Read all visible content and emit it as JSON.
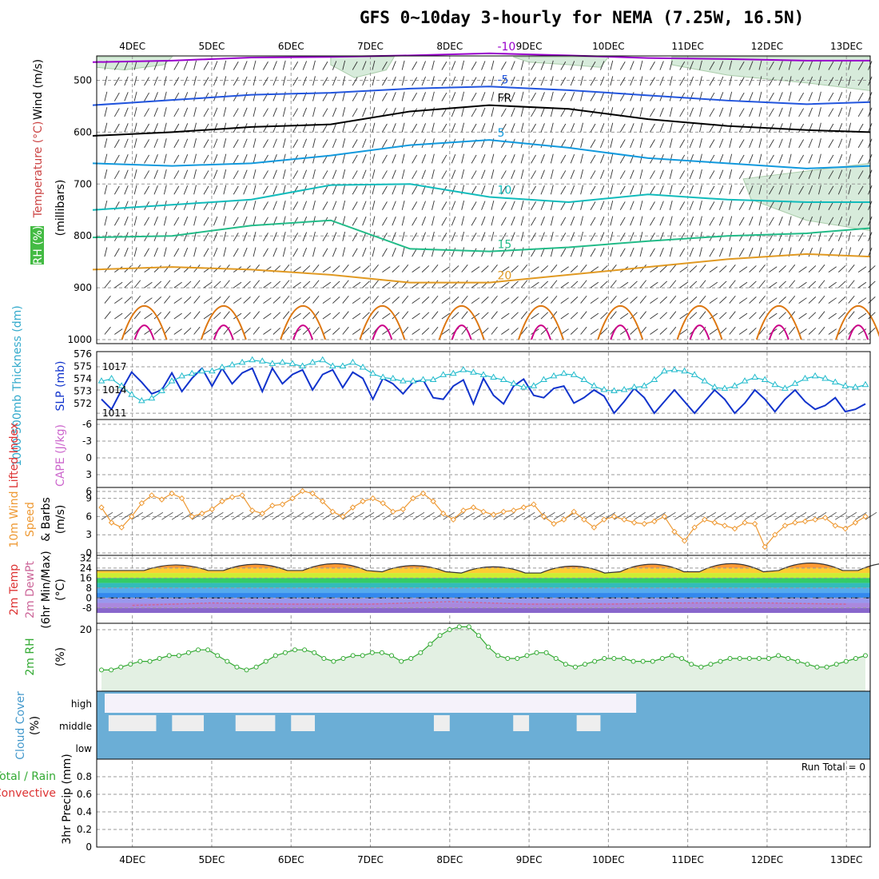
{
  "header": {
    "title": "GFS 0~10day 3-hourly for NEMA (7.25W, 16.5N)"
  },
  "dates": [
    "4DEC",
    "5DEC",
    "6DEC",
    "7DEC",
    "8DEC",
    "9DEC",
    "10DEC",
    "11DEC",
    "12DEC",
    "13DEC"
  ],
  "colors": {
    "temp_minus10": "#9900cc",
    "temp_minus5": "#2255dd",
    "temp_fr": "#000000",
    "temp_5": "#1199dd",
    "temp_10": "#11bbbb",
    "temp_15": "#22bb88",
    "temp_20": "#e09922",
    "temp_25": "#dd7711",
    "temp_30": "#cc0088",
    "slp": "#1133cc",
    "thickness": "#22bbcc",
    "wind10m": "#ee9933",
    "rh2m": "#33aa33",
    "cloud": "#6baed6"
  },
  "chart_data": [
    {
      "type": "line",
      "panel": "upper-air",
      "ylabel_parts": [
        "RH (%)",
        "Temperature (°C)",
        "Wind (m/s)"
      ],
      "ylabel2": "(millibars)",
      "y_ticks": [
        500,
        600,
        700,
        800,
        900,
        1000
      ],
      "contour_labels": [
        "-10",
        "-5",
        "FR",
        "5",
        "10",
        "15",
        "20"
      ],
      "series": [
        {
          "name": "-10",
          "x_day": [
            3.5,
            4.5,
            5.5,
            6.5,
            7.5,
            8.5,
            9.5,
            10.5,
            11.5,
            12.5,
            13.3
          ],
          "pressure": [
            465,
            462,
            456,
            455,
            452,
            448,
            452,
            457,
            459,
            462,
            462
          ]
        },
        {
          "name": "-5",
          "x_day": [
            3.5,
            4.5,
            5.5,
            6.5,
            7.5,
            8.5,
            9.5,
            10.5,
            11.5,
            12.5,
            13.3
          ],
          "pressure": [
            548,
            538,
            528,
            524,
            516,
            512,
            519,
            529,
            539,
            546,
            542
          ]
        },
        {
          "name": "FR",
          "x_day": [
            3.5,
            4.5,
            5.5,
            6.5,
            7.5,
            8.5,
            9.5,
            10.5,
            11.5,
            12.5,
            13.3
          ],
          "pressure": [
            607,
            600,
            590,
            585,
            560,
            548,
            555,
            575,
            588,
            596,
            600
          ]
        },
        {
          "name": "5",
          "x_day": [
            3.5,
            4.5,
            5.5,
            6.5,
            7.5,
            8.5,
            9.5,
            10.5,
            11.5,
            12.5,
            13.3
          ],
          "pressure": [
            660,
            665,
            660,
            645,
            625,
            615,
            630,
            650,
            660,
            670,
            665
          ]
        },
        {
          "name": "10",
          "x_day": [
            3.5,
            4.5,
            5.5,
            6.5,
            7.5,
            8.5,
            9.5,
            10.5,
            11.5,
            12.5,
            13.3
          ],
          "pressure": [
            750,
            740,
            730,
            702,
            700,
            725,
            735,
            720,
            730,
            735,
            735
          ]
        },
        {
          "name": "15",
          "x_day": [
            3.5,
            4.5,
            5.5,
            6.5,
            7.5,
            8.5,
            9.5,
            10.5,
            11.5,
            12.5,
            13.3
          ],
          "pressure": [
            803,
            800,
            780,
            770,
            825,
            830,
            822,
            810,
            800,
            795,
            785
          ]
        },
        {
          "name": "20",
          "x_day": [
            3.5,
            4.5,
            5.5,
            6.5,
            7.5,
            8.5,
            9.5,
            10.5,
            11.5,
            12.5,
            13.3
          ],
          "pressure": [
            865,
            860,
            865,
            875,
            890,
            890,
            875,
            860,
            845,
            835,
            840
          ]
        }
      ]
    },
    {
      "type": "line",
      "panel": "pressure",
      "ylabel": "SLP (mb)",
      "ylabel2": "1000-500mb Thickness (dm)",
      "ytick_slp": [
        "1017",
        "1014",
        "1011"
      ],
      "ytick_thk": [
        "576",
        "575",
        "574",
        "573",
        "572"
      ],
      "series": [
        {
          "name": "SLP",
          "values": [
            1012.8,
            1011.5,
            1014.0,
            1016.3,
            1015.0,
            1013.5,
            1014.0,
            1016.2,
            1013.8,
            1015.5,
            1016.8,
            1014.5,
            1016.8,
            1014.8,
            1016.2,
            1016.8,
            1013.8,
            1016.8,
            1014.8,
            1016.0,
            1016.6,
            1014.0,
            1016.0,
            1016.6,
            1014.3,
            1016.3,
            1015.5,
            1012.8,
            1015.5,
            1014.8,
            1013.5,
            1015.0,
            1015.3,
            1013.0,
            1012.8,
            1014.5,
            1015.3,
            1012.2,
            1015.5,
            1013.3,
            1012.2,
            1014.5,
            1015.4,
            1013.3,
            1013.0,
            1014.2,
            1014.5,
            1012.3,
            1013.0,
            1014.0,
            1013.2,
            1011.0,
            1012.5,
            1014.2,
            1013.0,
            1011.0,
            1012.5,
            1014.0,
            1012.5,
            1011.0,
            1012.5,
            1014.0,
            1012.8,
            1011.0,
            1012.3,
            1014.0,
            1012.8,
            1011.2,
            1012.8,
            1014.0,
            1012.5,
            1011.5,
            1012.0,
            1013.0,
            1011.2,
            1011.5,
            1012.2
          ]
        },
        {
          "name": "Thickness",
          "values": [
            573.8,
            574.0,
            573.4,
            572.7,
            572.2,
            572.4,
            573.0,
            573.8,
            574.2,
            574.4,
            574.6,
            574.6,
            574.9,
            575.1,
            575.3,
            575.5,
            575.4,
            575.2,
            575.3,
            575.2,
            575.0,
            575.3,
            575.5,
            575.0,
            575.0,
            575.3,
            574.9,
            574.4,
            574.1,
            574.0,
            573.8,
            573.8,
            573.9,
            573.9,
            574.3,
            574.4,
            574.7,
            574.5,
            574.3,
            574.1,
            573.9,
            573.6,
            573.3,
            573.4,
            573.9,
            574.2,
            574.4,
            574.3,
            573.9,
            573.4,
            573.1,
            573.0,
            573.1,
            573.3,
            573.4,
            573.9,
            574.6,
            574.7,
            574.6,
            574.3,
            573.8,
            573.3,
            573.2,
            573.4,
            573.8,
            574.1,
            573.9,
            573.5,
            573.2,
            573.6,
            574.0,
            574.2,
            574.0,
            573.7,
            573.4,
            573.3,
            573.5
          ]
        }
      ]
    },
    {
      "type": "line",
      "panel": "instability",
      "ylabel": "Lifted Index",
      "ylabel2": "CAPE (J/kg)",
      "y_ticks": [
        "-6",
        "-3",
        "0",
        "3",
        "6"
      ],
      "series": []
    },
    {
      "type": "line",
      "panel": "wind10m",
      "ylabel": "10m Wind Speed & Barbs",
      "ylabel_parts": [
        "10m Wind",
        "Speed",
        "& Barbs"
      ],
      "ylabel2": "(m/s)",
      "y_ticks": [
        "0",
        "3",
        "6",
        "9"
      ],
      "series": [
        {
          "name": "10m Wind Speed",
          "values": [
            7.5,
            5.0,
            4.2,
            6.0,
            8.2,
            9.5,
            8.8,
            9.8,
            9.0,
            6.0,
            6.5,
            7.2,
            8.5,
            9.2,
            9.5,
            7.0,
            6.5,
            7.8,
            8.0,
            9.0,
            10.2,
            9.8,
            8.5,
            6.8,
            6.0,
            7.5,
            8.5,
            9.0,
            8.2,
            6.8,
            7.2,
            9.0,
            9.8,
            8.5,
            6.5,
            5.5,
            7.0,
            7.5,
            6.8,
            6.3,
            6.8,
            7.0,
            7.5,
            8.0,
            6.0,
            4.8,
            5.5,
            6.8,
            5.5,
            4.2,
            5.5,
            6.0,
            5.5,
            5.0,
            4.8,
            5.2,
            6.0,
            3.5,
            2.0,
            4.2,
            5.5,
            5.0,
            4.5,
            4.0,
            5.0,
            4.8,
            1.0,
            3.0,
            4.5,
            5.0,
            5.2,
            5.5,
            5.8,
            4.5,
            4.0,
            5.0,
            6.0
          ]
        }
      ]
    },
    {
      "type": "area",
      "panel": "temperature2m",
      "ylabel_parts": [
        "2m Temp",
        "2m DewPt",
        "(6hr Min/Max)"
      ],
      "ylabel2": "(°C)",
      "y_ticks": [
        "-8",
        "0",
        "8",
        "16",
        "24",
        "32"
      ],
      "series": [
        {
          "name": "2m Temp",
          "daily_min": [
            22,
            22,
            22,
            21,
            20,
            20,
            21,
            21,
            22,
            22
          ],
          "daily_max": [
            28,
            29,
            30,
            28,
            27,
            28,
            30,
            31,
            31,
            31
          ]
        },
        {
          "name": "2m DewPt",
          "values_approx": [
            -6,
            -4,
            -5,
            -5,
            -3,
            -5,
            -5,
            -4,
            -4,
            -5
          ]
        }
      ]
    },
    {
      "type": "line",
      "panel": "rh2m",
      "ylabel": "2m RH",
      "ylabel2": "(%)",
      "y_ticks": [
        "20"
      ],
      "series": [
        {
          "name": "2m RH",
          "values": [
            6,
            6,
            7,
            8,
            9,
            9,
            10,
            11,
            11,
            12,
            13,
            13,
            11,
            9,
            7,
            6,
            7,
            9,
            11,
            12,
            13,
            13,
            12,
            10,
            9,
            10,
            11,
            11,
            12,
            12,
            11,
            9,
            10,
            12,
            15,
            18,
            20,
            21,
            21,
            18,
            14,
            11,
            10,
            10,
            11,
            12,
            12,
            10,
            8,
            7,
            8,
            9,
            10,
            10,
            10,
            9,
            9,
            9,
            10,
            11,
            10,
            8,
            7,
            8,
            9,
            10,
            10,
            10,
            10,
            10,
            11,
            10,
            9,
            8,
            7,
            7,
            8,
            9,
            10,
            11
          ]
        }
      ]
    },
    {
      "type": "bar",
      "panel": "cloud",
      "ylabel": "Cloud Cover",
      "ylabel2": "(%)",
      "levels": [
        "high",
        "middle",
        "low"
      ]
    },
    {
      "type": "bar",
      "panel": "precip",
      "ylabel_parts": [
        "Total / Rain",
        "Convective"
      ],
      "ylabel2": "3hr Precip (mm)",
      "y_ticks": [
        "0",
        "0.2",
        "0.4",
        "0.6",
        "0.8"
      ],
      "run_total": "Run Total = 0",
      "series": []
    }
  ]
}
